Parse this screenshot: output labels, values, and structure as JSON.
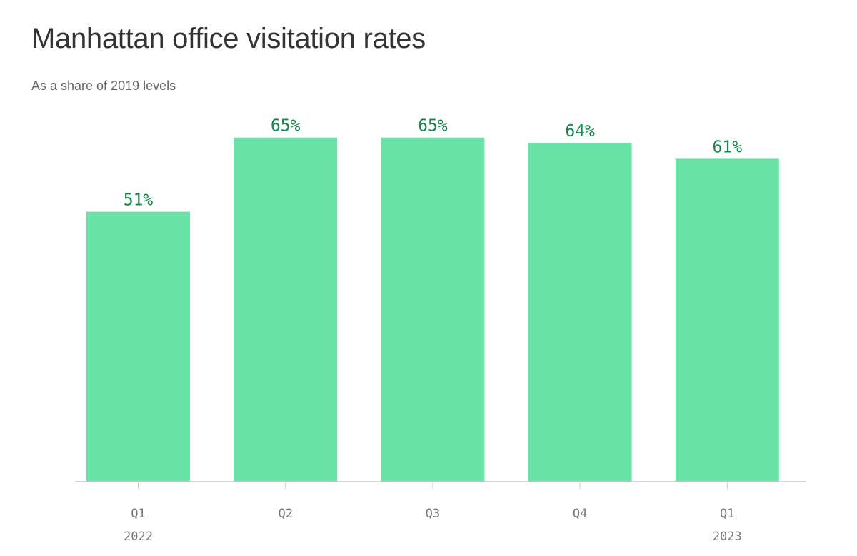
{
  "chart_data": {
    "type": "bar",
    "title": "Manhattan office visitation rates",
    "subtitle": "As a share of 2019 levels",
    "categories": [
      "Q1",
      "Q2",
      "Q3",
      "Q4",
      "Q1"
    ],
    "year_labels": [
      "2022",
      "",
      "",
      "",
      "2023"
    ],
    "values": [
      51,
      65,
      65,
      64,
      61
    ],
    "data_labels": [
      "51%",
      "65%",
      "65%",
      "64%",
      "61%"
    ],
    "ylim": [
      0,
      100
    ],
    "grid": false,
    "legend": "none",
    "bar_color": "#68e3a5",
    "label_color": "#0f8a4a",
    "axis_color": "#cccccc",
    "tick_text_color": "#777777"
  }
}
